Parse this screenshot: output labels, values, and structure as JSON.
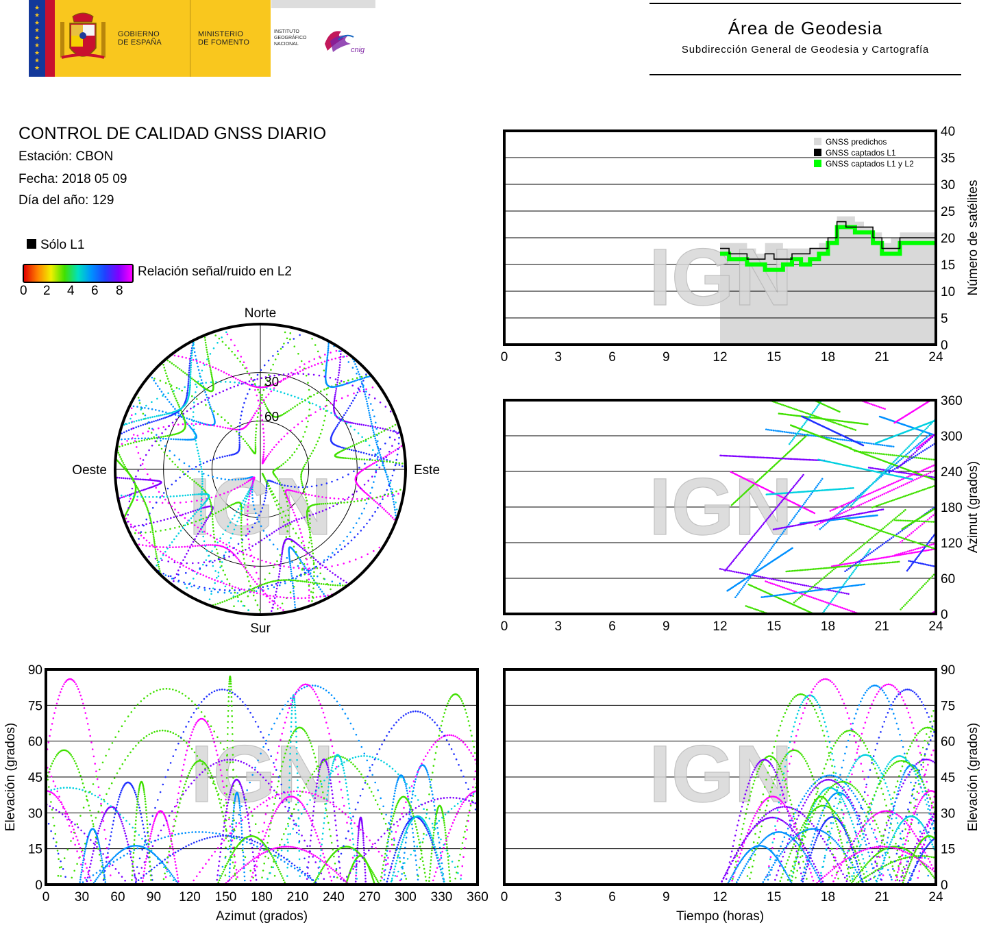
{
  "header": {
    "gov_line1": "GOBIERNO",
    "gov_line2": "DE ESPAÑA",
    "min_line1": "MINISTERIO",
    "min_line2": "DE FOMENTO",
    "ign_line1": "INSTITUTO",
    "ign_line2": "GEOGRÁFICO",
    "ign_line3": "NACIONAL",
    "cnig": "cnig",
    "area_title": "Área de Geodesia",
    "area_subtitle": "Subdirección General de Geodesia y Cartografía"
  },
  "info": {
    "title": "CONTROL DE CALIDAD GNSS DIARIO",
    "station": "Estación: CBON",
    "date": "Fecha: 2018 05 09",
    "doy": "Día del año: 129",
    "solo_l1": "Sólo L1",
    "snr_label": "Relación señal/ruido en L2",
    "snr_ticks": [
      "0",
      "2",
      "4",
      "6",
      "8"
    ]
  },
  "watermark": "IGN",
  "colors": {
    "magenta": "#ff00ff",
    "purple": "#8000ff",
    "blue": "#2030ff",
    "azure": "#0090ff",
    "cyan": "#00d0e0",
    "green": "#40e000",
    "yellow": "#f0f000",
    "orange": "#ff8000",
    "red": "#e00000",
    "predicted_grey": "#d9d9d9",
    "l1l2_green": "#00ff00"
  },
  "chart_data": [
    {
      "id": "satellites",
      "type": "area",
      "ylabel": "Número de satélites",
      "xlim": [
        0,
        24
      ],
      "ylim": [
        0,
        40
      ],
      "xticks": [
        "0",
        "3",
        "6",
        "9",
        "12",
        "15",
        "18",
        "21",
        "24"
      ],
      "yticks": [
        "0",
        "5",
        "10",
        "15",
        "20",
        "25",
        "30",
        "35",
        "40"
      ],
      "grid": true,
      "legend_position": "top-right",
      "legend": [
        "GNSS predichos",
        "GNSS captados L1",
        "GNSS captados L1 y L2"
      ],
      "x": [
        12,
        12.5,
        13,
        13.5,
        14,
        14.5,
        15,
        15.5,
        16,
        16.5,
        17,
        17.5,
        18,
        18.5,
        19,
        19.5,
        20,
        20.5,
        21,
        21.5,
        22,
        22.5,
        23,
        23.5,
        24
      ],
      "series": [
        {
          "name": "GNSS predichos",
          "values": [
            19,
            19,
            19,
            18,
            17,
            19,
            19,
            18,
            18,
            18,
            18,
            19,
            20,
            24,
            24,
            23,
            22,
            21,
            19,
            20,
            21,
            21,
            21,
            21,
            21
          ]
        },
        {
          "name": "GNSS captados L1",
          "values": [
            18,
            17,
            17,
            16,
            16,
            17,
            16,
            16,
            17,
            17,
            18,
            18,
            20,
            23,
            22,
            22,
            22,
            20,
            18,
            18,
            20,
            20,
            20,
            20,
            20
          ]
        },
        {
          "name": "GNSS captados L1 y L2",
          "values": [
            17,
            16,
            16,
            15,
            15,
            14,
            14,
            15,
            16,
            15,
            16,
            17,
            19,
            22,
            22,
            21,
            21,
            19,
            17,
            17,
            19,
            19,
            19,
            19,
            19
          ]
        }
      ]
    },
    {
      "id": "skyplot",
      "type": "scatter",
      "projection": "polar",
      "direction_labels": {
        "north": "Norte",
        "south": "Sur",
        "west": "Oeste",
        "east": "Este"
      },
      "ring_labels": [
        "30",
        "60"
      ],
      "elevation_rings": [
        30,
        60
      ]
    },
    {
      "id": "azimuth_time",
      "type": "scatter",
      "ylabel": "Azimut (grados)",
      "xlim": [
        0,
        24
      ],
      "ylim": [
        0,
        360
      ],
      "xticks": [
        "0",
        "3",
        "6",
        "9",
        "12",
        "15",
        "18",
        "21",
        "24"
      ],
      "yticks": [
        "0",
        "60",
        "120",
        "180",
        "240",
        "300",
        "360"
      ],
      "grid": true
    },
    {
      "id": "elevation_azimuth",
      "type": "scatter",
      "xlabel": "Azimut (grados)",
      "ylabel": "Elevación (grados)",
      "xlim": [
        0,
        360
      ],
      "ylim": [
        0,
        90
      ],
      "xticks": [
        "0",
        "30",
        "60",
        "90",
        "120",
        "150",
        "180",
        "210",
        "240",
        "270",
        "300",
        "330",
        "360"
      ],
      "yticks": [
        "0",
        "15",
        "30",
        "45",
        "60",
        "75",
        "90"
      ],
      "grid": true
    },
    {
      "id": "elevation_time",
      "type": "scatter",
      "xlabel": "Tiempo (horas)",
      "ylabel": "Elevación (grados)",
      "xlim": [
        0,
        24
      ],
      "ylim": [
        0,
        90
      ],
      "xticks": [
        "0",
        "3",
        "6",
        "9",
        "12",
        "15",
        "18",
        "21",
        "24"
      ],
      "yticks": [
        "0",
        "15",
        "30",
        "45",
        "60",
        "75",
        "90"
      ],
      "grid": true
    }
  ]
}
